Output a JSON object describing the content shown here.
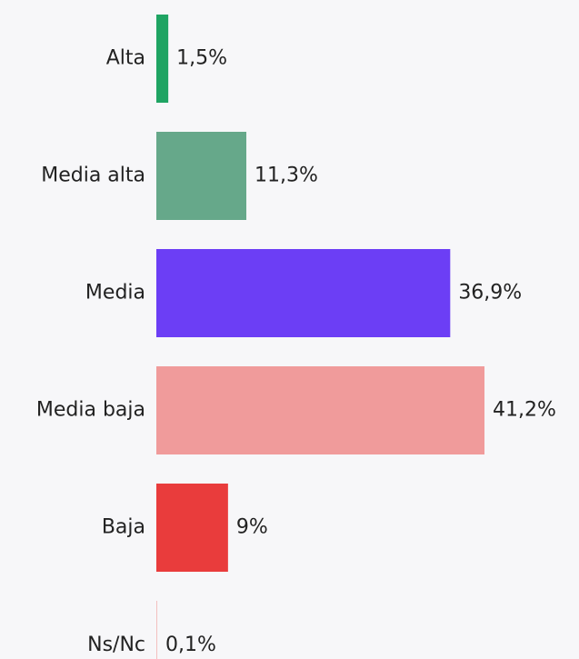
{
  "chart_data": {
    "type": "bar",
    "orientation": "horizontal",
    "categories": [
      "Alta",
      "Media alta",
      "Media",
      "Media baja",
      "Baja",
      "Ns/Nc"
    ],
    "values": [
      1.5,
      11.3,
      36.9,
      41.2,
      9,
      0.1
    ],
    "value_labels": [
      "1,5%",
      "11,3%",
      "36,9%",
      "41,2%",
      "9%",
      "0,1%"
    ],
    "colors": [
      "#1fa463",
      "#66a88a",
      "#6c3ef5",
      "#f09b9b",
      "#e93c3c",
      "#f3c0c0"
    ]
  }
}
